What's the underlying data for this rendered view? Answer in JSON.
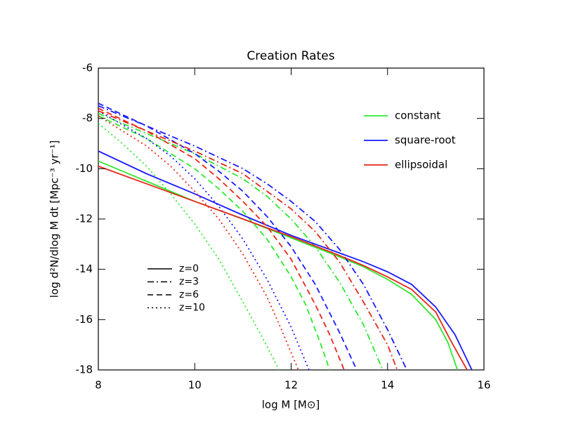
{
  "chart_data": {
    "type": "line",
    "title": "Creation Rates",
    "x_label": "log M [M⊙]",
    "y_label": "log d²N/dlog M dt [Mpc⁻³ yr⁻¹]",
    "xlim": [
      8,
      16
    ],
    "xticks": [
      8,
      10,
      12,
      14,
      16
    ],
    "ylim": [
      -18,
      -6
    ],
    "yticks": [
      -18,
      -16,
      -14,
      -12,
      -10,
      -8,
      -6
    ],
    "grid": false,
    "linestyles": [
      {
        "name": "z=0",
        "dash": "solid"
      },
      {
        "name": "z=3",
        "dash": "dashdot"
      },
      {
        "name": "z=6",
        "dash": "dashed"
      },
      {
        "name": "z=10",
        "dash": "dotted"
      }
    ],
    "series": [
      {
        "name": "constant",
        "color": "#2ee82e",
        "curves": [
          {
            "x": [
              8,
              9,
              10,
              11,
              12,
              13,
              13.5,
              14,
              14.5,
              15,
              15.25,
              15.45
            ],
            "values": [
              -9.7,
              -10.5,
              -11.3,
              -12.0,
              -12.75,
              -13.5,
              -13.9,
              -14.4,
              -15.0,
              -16.0,
              -16.9,
              -18
            ]
          },
          {
            "x": [
              8,
              9,
              10,
              11,
              11.5,
              12,
              12.5,
              13,
              13.5,
              13.9
            ],
            "values": [
              -7.8,
              -8.6,
              -9.4,
              -10.4,
              -11.1,
              -12.0,
              -13.1,
              -14.5,
              -16.2,
              -18
            ]
          },
          {
            "x": [
              8,
              9,
              10,
              10.5,
              11,
              11.5,
              12,
              12.3,
              12.6,
              12.8
            ],
            "values": [
              -7.9,
              -8.8,
              -10.0,
              -10.8,
              -11.7,
              -12.8,
              -14.3,
              -15.4,
              -16.9,
              -18
            ]
          },
          {
            "x": [
              8,
              8.5,
              9,
              9.5,
              10,
              10.5,
              11,
              11.4,
              11.75
            ],
            "values": [
              -8.2,
              -9.0,
              -9.9,
              -11.0,
              -12.2,
              -13.6,
              -15.3,
              -16.7,
              -18
            ]
          }
        ]
      },
      {
        "name": "square-root",
        "color": "#1a1aff",
        "curves": [
          {
            "x": [
              8,
              9,
              10,
              11,
              12,
              13,
              13.5,
              14,
              14.5,
              15,
              15.4,
              15.75
            ],
            "values": [
              -9.3,
              -10.2,
              -11.0,
              -11.85,
              -12.65,
              -13.35,
              -13.7,
              -14.1,
              -14.6,
              -15.5,
              -16.6,
              -18
            ]
          },
          {
            "x": [
              8,
              9,
              10,
              11,
              11.5,
              12,
              12.5,
              13,
              13.5,
              14,
              14.4
            ],
            "values": [
              -7.5,
              -8.3,
              -9.1,
              -10.0,
              -10.6,
              -11.3,
              -12.1,
              -13.2,
              -14.6,
              -16.4,
              -18
            ]
          },
          {
            "x": [
              8,
              9,
              10,
              10.5,
              11,
              11.5,
              12,
              12.5,
              13,
              13.36
            ],
            "values": [
              -7.4,
              -8.3,
              -9.4,
              -10.1,
              -10.9,
              -11.9,
              -13.1,
              -14.6,
              -16.5,
              -18
            ]
          },
          {
            "x": [
              8,
              9,
              9.5,
              10,
              10.5,
              11,
              11.5,
              12,
              12.37
            ],
            "values": [
              -7.7,
              -8.8,
              -9.5,
              -10.4,
              -11.5,
              -12.8,
              -14.4,
              -16.3,
              -18
            ]
          }
        ]
      },
      {
        "name": "ellipsoidal",
        "color": "#e8261a",
        "curves": [
          {
            "x": [
              8,
              9,
              10,
              11,
              12,
              13,
              13.5,
              14,
              14.5,
              15,
              15.3,
              15.65
            ],
            "values": [
              -9.9,
              -10.6,
              -11.3,
              -12.0,
              -12.7,
              -13.45,
              -13.85,
              -14.3,
              -14.8,
              -15.7,
              -16.8,
              -18
            ]
          },
          {
            "x": [
              8,
              9,
              10,
              11,
              11.5,
              12,
              12.5,
              13,
              13.5,
              14,
              14.2
            ],
            "values": [
              -7.7,
              -8.5,
              -9.3,
              -10.2,
              -10.9,
              -11.6,
              -12.5,
              -13.7,
              -15.3,
              -17.0,
              -18
            ]
          },
          {
            "x": [
              8,
              9,
              10,
              10.5,
              11,
              11.5,
              12,
              12.5,
              12.8,
              13.1
            ],
            "values": [
              -7.6,
              -8.5,
              -9.6,
              -10.4,
              -11.3,
              -12.3,
              -13.6,
              -15.4,
              -16.6,
              -18
            ]
          },
          {
            "x": [
              8,
              9,
              9.5,
              10,
              10.5,
              11,
              11.5,
              11.8,
              12.15
            ],
            "values": [
              -7.9,
              -9.1,
              -9.9,
              -10.9,
              -12.0,
              -13.4,
              -15.1,
              -16.4,
              -18
            ]
          }
        ]
      }
    ]
  }
}
